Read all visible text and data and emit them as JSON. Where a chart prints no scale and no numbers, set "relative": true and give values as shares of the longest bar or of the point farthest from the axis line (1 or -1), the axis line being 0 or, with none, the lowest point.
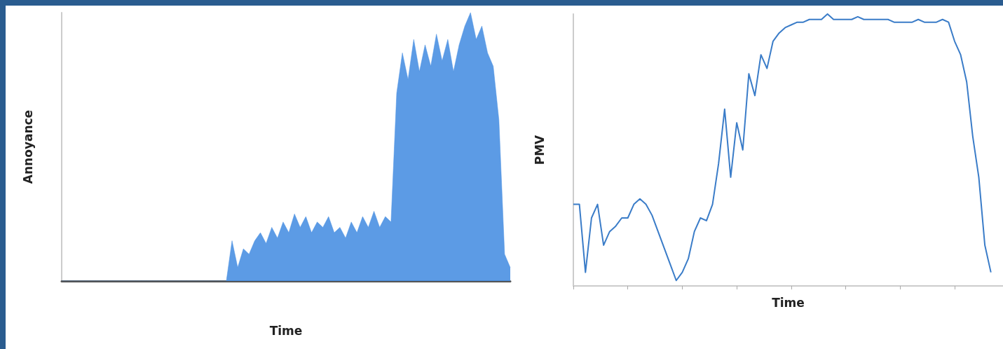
{
  "chart_data": [
    {
      "type": "area",
      "relative": true,
      "xlabel": "Time",
      "ylabel": "Annoyance",
      "color": "#4a90e2",
      "grid": false,
      "categories": [
        null,
        null,
        null,
        null,
        null,
        null,
        null,
        null,
        null,
        null,
        null,
        null,
        null,
        null,
        null,
        null,
        null,
        null,
        null,
        null,
        null,
        null,
        null,
        null,
        null,
        null,
        null,
        null,
        null,
        null,
        null,
        null,
        null,
        null,
        null,
        null,
        null,
        null,
        null,
        null,
        null,
        null,
        null,
        null,
        null,
        null,
        null,
        null,
        null,
        null,
        null,
        null,
        null,
        null,
        null,
        null,
        null,
        null,
        null,
        null,
        null,
        null,
        null,
        null,
        null,
        null,
        null,
        null,
        null,
        null,
        null,
        null,
        null,
        null,
        null,
        null,
        null,
        null,
        null,
        null
      ],
      "values": [
        0,
        0,
        0,
        0,
        0,
        0,
        0,
        0,
        0,
        0,
        0,
        0,
        0,
        0,
        0,
        0,
        0,
        0,
        0,
        0,
        0,
        0,
        0,
        0,
        0,
        0,
        0,
        0,
        0,
        0,
        0.15,
        0.05,
        0.12,
        0.1,
        0.15,
        0.18,
        0.14,
        0.2,
        0.16,
        0.22,
        0.18,
        0.25,
        0.2,
        0.24,
        0.18,
        0.22,
        0.2,
        0.24,
        0.18,
        0.2,
        0.16,
        0.22,
        0.18,
        0.24,
        0.2,
        0.26,
        0.2,
        0.24,
        0.22,
        0.7,
        0.85,
        0.75,
        0.9,
        0.78,
        0.88,
        0.8,
        0.92,
        0.82,
        0.9,
        0.78,
        0.88,
        0.95,
        1,
        0.9,
        0.95,
        0.85,
        0.8,
        0.6,
        0.1,
        0.05
      ]
    },
    {
      "type": "line",
      "relative": true,
      "xlabel": "Time",
      "ylabel": "PMV",
      "color": "#3a7cc8",
      "grid": false,
      "categories": [
        null,
        null,
        null,
        null,
        null,
        null,
        null,
        null,
        null,
        null,
        null,
        null,
        null,
        null,
        null,
        null,
        null,
        null,
        null,
        null,
        null,
        null,
        null,
        null,
        null,
        null,
        null,
        null,
        null,
        null,
        null,
        null,
        null,
        null,
        null,
        null,
        null,
        null,
        null,
        null,
        null,
        null,
        null,
        null,
        null,
        null,
        null,
        null,
        null,
        null,
        null,
        null,
        null,
        null,
        null,
        null,
        null,
        null,
        null,
        null,
        null,
        null,
        null,
        null,
        null,
        null,
        null,
        null,
        null,
        null,
        null,
        null
      ],
      "values": [
        0.3,
        0.3,
        0.05,
        0.25,
        0.3,
        0.15,
        0.2,
        0.22,
        0.25,
        0.25,
        0.3,
        0.32,
        0.3,
        0.26,
        0.2,
        0.14,
        0.08,
        0.02,
        0.05,
        0.1,
        0.2,
        0.25,
        0.24,
        0.3,
        0.45,
        0.65,
        0.4,
        0.6,
        0.5,
        0.78,
        0.7,
        0.85,
        0.8,
        0.9,
        0.93,
        0.95,
        0.96,
        0.97,
        0.97,
        0.98,
        0.98,
        0.98,
        1,
        0.98,
        0.98,
        0.98,
        0.98,
        0.99,
        0.98,
        0.98,
        0.98,
        0.98,
        0.98,
        0.97,
        0.97,
        0.97,
        0.97,
        0.98,
        0.97,
        0.97,
        0.97,
        0.98,
        0.97,
        0.9,
        0.85,
        0.75,
        0.55,
        0.4,
        0.15,
        0.05,
        null,
        null
      ]
    }
  ]
}
